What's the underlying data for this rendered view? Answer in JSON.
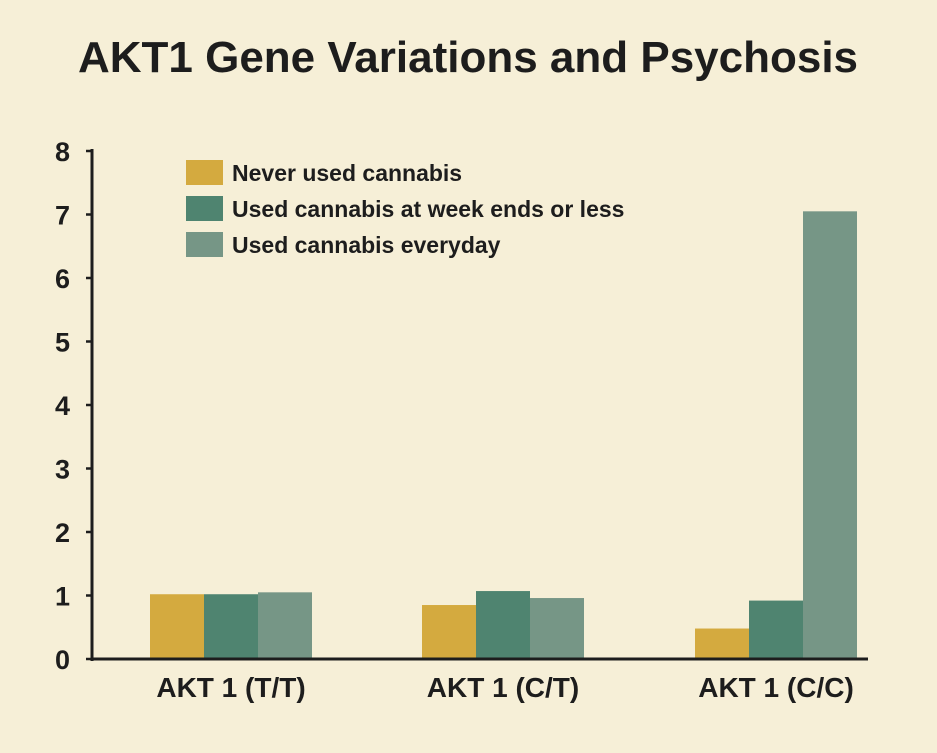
{
  "chart_data": {
    "type": "bar",
    "title": "AKT1 Gene Variations and Psychosis",
    "xlabel": "",
    "ylabel": "",
    "categories": [
      "AKT 1 (T/T)",
      "AKT 1 (C/T)",
      "AKT 1 (C/C)"
    ],
    "series": [
      {
        "name": "Never used cannabis",
        "color": "#d4aa3f",
        "values": [
          1.02,
          0.85,
          0.48
        ]
      },
      {
        "name": "Used cannabis at week ends or less",
        "color": "#4f8470",
        "values": [
          1.02,
          1.07,
          0.92
        ]
      },
      {
        "name": "Used cannabis everyday",
        "color": "#769686",
        "values": [
          1.05,
          0.96,
          7.05
        ]
      }
    ],
    "yticks": [
      "0",
      "1",
      "2",
      "3",
      "4",
      "5",
      "6",
      "7",
      "8"
    ],
    "ylim": [
      0,
      8
    ],
    "grid": false,
    "legend_position": "top-left"
  },
  "colors": {
    "background": "#f6efd7",
    "axis": "#1d1d1d",
    "text": "#1d1d1d"
  }
}
